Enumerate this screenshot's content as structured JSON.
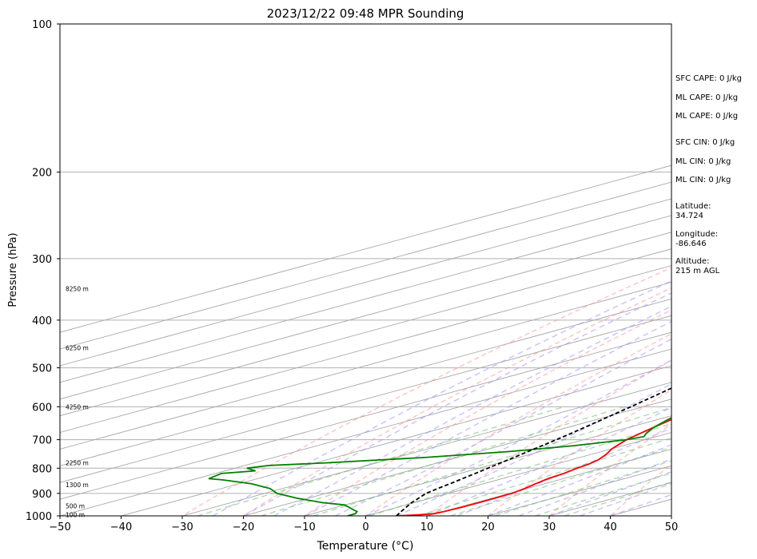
{
  "chart_data": {
    "type": "line",
    "title": "2023/12/22 09:48 MPR Sounding",
    "xlabel": "Temperature (°C)",
    "ylabel": "Pressure (hPa)",
    "xlim": [
      -50,
      50
    ],
    "ylim": [
      1000,
      100
    ],
    "y_scale": "log",
    "skew_t": true,
    "x_ticks": [
      -50,
      -40,
      -30,
      -20,
      -10,
      0,
      10,
      20,
      30,
      40,
      50
    ],
    "x_tick_labels": [
      "−50",
      "−40",
      "−30",
      "−20",
      "−10",
      "0",
      "10",
      "20",
      "30",
      "40",
      "50"
    ],
    "y_ticks": [
      1000,
      900,
      800,
      700,
      600,
      500,
      400,
      300,
      200,
      100
    ],
    "y_tick_labels": [
      "1000",
      "900",
      "800",
      "700",
      "600",
      "500",
      "400",
      "300",
      "200",
      "100"
    ],
    "height_labels": [
      {
        "p": 994,
        "text": "100 m"
      },
      {
        "p": 955,
        "text": "500 m"
      },
      {
        "p": 865,
        "text": "1300 m"
      },
      {
        "p": 780,
        "text": "2250 m"
      },
      {
        "p": 600,
        "text": "4250 m"
      },
      {
        "p": 455,
        "text": "6250 m"
      },
      {
        "p": 345,
        "text": "8250 m"
      }
    ],
    "series": [
      {
        "color": "#ff0000",
        "points": [
          [
            1000,
            5.0
          ],
          [
            995,
            8.0
          ],
          [
            990,
            9.8
          ],
          [
            980,
            10.2
          ],
          [
            960,
            10.5
          ],
          [
            940,
            10.6
          ],
          [
            920,
            10.5
          ],
          [
            900,
            10.4
          ],
          [
            880,
            9.6
          ],
          [
            860,
            8.5
          ],
          [
            840,
            7.5
          ],
          [
            820,
            7.0
          ],
          [
            800,
            6.0
          ],
          [
            785,
            5.5
          ],
          [
            770,
            4.5
          ],
          [
            750,
            2.5
          ],
          [
            730,
            0.0
          ],
          [
            715,
            -1.5
          ],
          [
            700,
            -3.0
          ],
          [
            680,
            -4.5
          ],
          [
            660,
            -6.0
          ],
          [
            640,
            -7.5
          ],
          [
            620,
            -9.0
          ],
          [
            600,
            -10.5
          ],
          [
            580,
            -12.0
          ],
          [
            560,
            -13.5
          ],
          [
            540,
            -15.0
          ],
          [
            520,
            -16.5
          ],
          [
            500,
            -18.0
          ],
          [
            480,
            -19.5
          ],
          [
            460,
            -21.0
          ],
          [
            440,
            -22.5
          ],
          [
            420,
            -24.0
          ],
          [
            400,
            -25.5
          ],
          [
            380,
            -27.5
          ],
          [
            360,
            -29.5
          ],
          [
            340,
            -31.5
          ],
          [
            320,
            -33.5
          ],
          [
            300,
            -35.5
          ],
          [
            290,
            -36.5
          ],
          [
            280,
            -38.0
          ],
          [
            270,
            -39.5
          ],
          [
            260,
            -41.5
          ]
        ]
      },
      {
        "color": "#008000",
        "points": [
          [
            1000,
            -3.0
          ],
          [
            990,
            -3.0
          ],
          [
            980,
            -4.0
          ],
          [
            970,
            -6.0
          ],
          [
            960,
            -8.0
          ],
          [
            950,
            -10.0
          ],
          [
            940,
            -15.0
          ],
          [
            920,
            -22.0
          ],
          [
            900,
            -28.0
          ],
          [
            880,
            -32.0
          ],
          [
            860,
            -38.0
          ],
          [
            845,
            -45.0
          ],
          [
            840,
            -48.0
          ],
          [
            820,
            -49.0
          ],
          [
            810,
            -45.0
          ],
          [
            800,
            -48.0
          ],
          [
            790,
            -46.0
          ],
          [
            780,
            -38.0
          ],
          [
            760,
            -25.0
          ],
          [
            740,
            -15.0
          ],
          [
            720,
            -8.0
          ],
          [
            700,
            -3.0
          ],
          [
            690,
            -2.0
          ],
          [
            680,
            -3.5
          ],
          [
            660,
            -6.0
          ],
          [
            640,
            -8.0
          ],
          [
            620,
            -10.0
          ],
          [
            600,
            -11.5
          ],
          [
            580,
            -13.5
          ],
          [
            560,
            -15.0
          ],
          [
            540,
            -17.0
          ],
          [
            520,
            -18.5
          ],
          [
            500,
            -20.0
          ],
          [
            480,
            -22.0
          ],
          [
            460,
            -24.0
          ],
          [
            440,
            -26.0
          ],
          [
            420,
            -27.5
          ],
          [
            400,
            -29.0
          ],
          [
            380,
            -31.0
          ],
          [
            360,
            -33.0
          ],
          [
            340,
            -35.5
          ],
          [
            320,
            -38.0
          ],
          [
            310,
            -39.0
          ],
          [
            305,
            -40.0
          ],
          [
            300,
            -42.0
          ],
          [
            295,
            -48.0
          ],
          [
            290,
            -60.0
          ],
          [
            285,
            -80.0
          ]
        ]
      },
      {
        "color": "#000000",
        "dashed": true,
        "points": [
          [
            1000,
            5.0
          ],
          [
            980,
            3.2
          ],
          [
            960,
            1.4
          ],
          [
            940,
            -0.4
          ],
          [
            920,
            -2.0
          ],
          [
            900,
            -3.6
          ],
          [
            880,
            -4.6
          ],
          [
            860,
            -5.5
          ],
          [
            840,
            -6.5
          ],
          [
            820,
            -7.5
          ],
          [
            800,
            -8.6
          ],
          [
            780,
            -9.7
          ],
          [
            760,
            -10.8
          ],
          [
            740,
            -12.0
          ],
          [
            720,
            -13.2
          ],
          [
            700,
            -14.5
          ],
          [
            680,
            -15.8
          ],
          [
            660,
            -17.3
          ],
          [
            640,
            -18.8
          ],
          [
            620,
            -20.4
          ],
          [
            600,
            -22.0
          ],
          [
            580,
            -23.8
          ],
          [
            560,
            -25.6
          ],
          [
            540,
            -27.5
          ],
          [
            520,
            -29.4
          ],
          [
            500,
            -31.5
          ],
          [
            480,
            -33.7
          ],
          [
            460,
            -36.0
          ],
          [
            440,
            -38.4
          ],
          [
            420,
            -41.0
          ],
          [
            400,
            -43.6
          ],
          [
            380,
            -46.4
          ],
          [
            360,
            -49.4
          ],
          [
            340,
            -52.5
          ],
          [
            320,
            -55.8
          ],
          [
            300,
            -59.3
          ],
          [
            280,
            -63.0
          ],
          [
            270,
            -65.0
          ]
        ]
      }
    ]
  },
  "side_panel": {
    "sfc_cape": "SFC CAPE: 0 J/kg",
    "ml_cape_1": "ML CAPE: 0 J/kg",
    "ml_cape_2": "ML CAPE: 0 J/kg",
    "sfc_cin": "SFC CIN: 0 J/kg",
    "ml_cin_1": "ML CIN: 0 J/kg",
    "ml_cin_2": "ML CIN: 0 J/kg",
    "latitude": "Latitude:\n34.724",
    "longitude": "Longitude:\n-86.646",
    "altitude": "Altitude:\n215 m AGL"
  }
}
